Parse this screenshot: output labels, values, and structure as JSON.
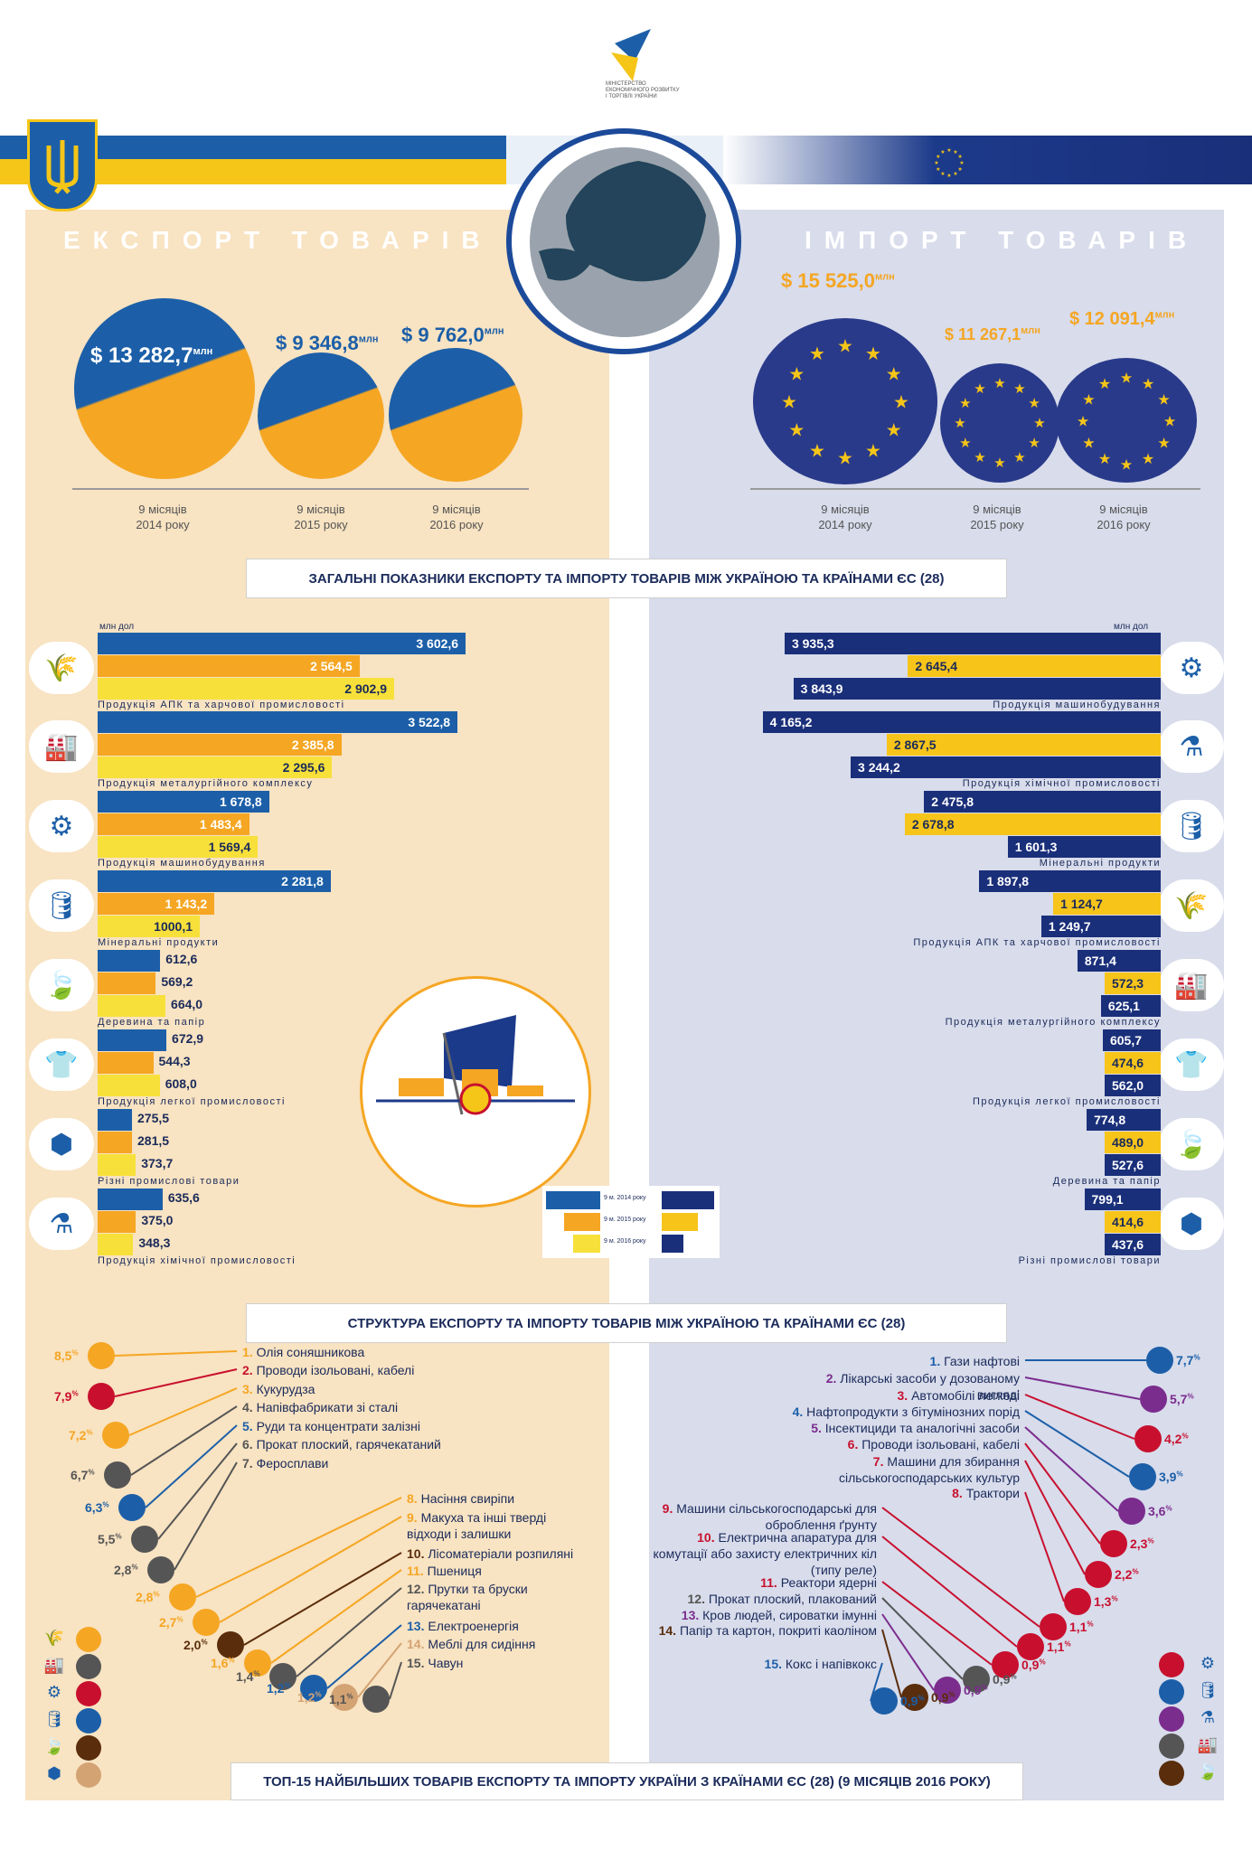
{
  "header": {
    "ministry_lines": [
      "МІНІСТЕРСТВО",
      "ЕКОНОМІЧНОГО РОЗВИТКУ",
      "І ТОРГІВЛІ УКРАЇНИ"
    ]
  },
  "export_title": "ЕКСПОРТ ТОВАРІВ",
  "import_title": "ІМПОРТ ТОВАРІВ",
  "export_totals": [
    {
      "value": "$ 13 282,7",
      "unit": "млн",
      "period1": "9 місяців",
      "period2": "2014 року"
    },
    {
      "value": "$ 9 346,8",
      "unit": "млн",
      "period1": "9 місяців",
      "period2": "2015 року"
    },
    {
      "value": "$ 9 762,0",
      "unit": "млн",
      "period1": "9 місяців",
      "period2": "2016 року"
    }
  ],
  "import_totals": [
    {
      "value": "$ 15 525,0",
      "unit": "млн",
      "period1": "9 місяців",
      "period2": "2014 року"
    },
    {
      "value": "$ 11 267,1",
      "unit": "млн",
      "period1": "9 місяців",
      "period2": "2015 року"
    },
    {
      "value": "$ 12 091,4",
      "unit": "млн",
      "period1": "9 місяців",
      "period2": "2016 року"
    }
  ],
  "section1_title": "ЗАГАЛЬНІ ПОКАЗНИКИ ЕКСПОРТУ ТА ІМПОРТУ ТОВАРІВ МІЖ УКРАЇНОЮ ТА КРАЇНАМИ ЄС (28)",
  "section2_title": "СТРУКТУРА ЕКСПОРТУ ТА ІМПОРТУ ТОВАРІВ МІЖ УКРАЇНОЮ ТА КРАЇНАМИ ЄС (28)",
  "section3_title": "ТОП-15 НАЙБІЛЬШИХ ТОВАРІВ ЕКСПОРТУ ТА ІМПОРТУ УКРАЇНИ З КРАЇНАМИ ЄС (28) (9 МІСЯЦІВ 2016 РОКУ)",
  "unit_label": "млн дол",
  "legend": [
    "9 м. 2014 року",
    "9 м. 2015 року",
    "9 м. 2016 року"
  ],
  "colors": {
    "export_2014": "#1c5fa8",
    "export_2015": "#f5a623",
    "export_2016": "#f7e03a",
    "import_dark": "#1a2f7a",
    "import_yellow": "#f7c41a"
  },
  "chart_data": [
    {
      "type": "bar",
      "orientation": "horizontal",
      "title": "Експорт",
      "ylabel": "млн дол",
      "categories": [
        "Продукція АПК та харчової промисловості",
        "Продукція металургійного комплексу",
        "Продукція машинобудування",
        "Мінеральні продукти",
        "Деревина та папір",
        "Продукція легкої промисловості",
        "Різні промислові товари",
        "Продукція хімічної промисловості"
      ],
      "icons": [
        "wheat-cow-icon",
        "factory-icon",
        "gear-icon",
        "oil-rig-icon",
        "leaf-icon",
        "shirt-icon",
        "nut-icon",
        "flask-icon"
      ],
      "series": [
        {
          "name": "9 м. 2014 року",
          "values": [
            3602.6,
            3522.8,
            1678.8,
            2281.8,
            612.6,
            672.9,
            275.5,
            635.6
          ],
          "labels": [
            "3 602,6",
            "3 522,8",
            "1 678,8",
            "2 281,8",
            "612,6",
            "672,9",
            "275,5",
            "635,6"
          ]
        },
        {
          "name": "9 м. 2015 року",
          "values": [
            2564.5,
            2385.8,
            1483.4,
            1143.2,
            569.2,
            544.3,
            281.5,
            375.0
          ],
          "labels": [
            "2 564,5",
            "2 385,8",
            "1 483,4",
            "1 143,2",
            "569,2",
            "544,3",
            "281,5",
            "375,0"
          ]
        },
        {
          "name": "9 м. 2016 року",
          "values": [
            2902.9,
            2295.6,
            1569.4,
            1000.1,
            664.0,
            608.0,
            373.7,
            348.3
          ],
          "labels": [
            "2 902,9",
            "2 295,6",
            "1 569,4",
            "1000,1",
            "664,0",
            "608,0",
            "373,7",
            "348,3"
          ]
        }
      ]
    },
    {
      "type": "bar",
      "orientation": "horizontal",
      "title": "Імпорт",
      "ylabel": "млн дол",
      "categories": [
        "Продукція машинобудування",
        "Продукція хімічної промисловості",
        "Мінеральні продукти",
        "Продукція АПК та  харчової промисловості",
        "Продукція металургійного комплексу",
        "Продукція легкої промисловості",
        "Деревина та папір",
        "Різні промислові товари"
      ],
      "icons": [
        "gear-icon",
        "flask-icon",
        "oil-rig-icon",
        "wheat-cow-icon",
        "factory-icon",
        "shirt-icon",
        "leaf-icon",
        "nut-icon"
      ],
      "series": [
        {
          "name": "9 м. 2014 року",
          "values": [
            3935.3,
            4165.2,
            2475.8,
            1897.8,
            871.4,
            605.7,
            774.8,
            799.1
          ],
          "labels": [
            "3 935,3",
            "4 165,2",
            "2 475,8",
            "1 897,8",
            "871,4",
            "605,7",
            "774,8",
            "799,1"
          ]
        },
        {
          "name": "9 м. 2015 року",
          "values": [
            2645.4,
            2867.5,
            2678.8,
            1124.7,
            572.3,
            474.6,
            489.0,
            414.6
          ],
          "labels": [
            "2 645,4",
            "2 867,5",
            "2 678,8",
            "1 124,7",
            "572,3",
            "474,6",
            "489,0",
            "414,6"
          ]
        },
        {
          "name": "9 м. 2016 року",
          "values": [
            3843.9,
            3244.2,
            1601.3,
            1249.7,
            625.1,
            562.0,
            527.6,
            437.6
          ],
          "labels": [
            "3 843,9",
            "3 244,2",
            "1 601,3",
            "1 249,7",
            "625,1",
            "562,0",
            "527,6",
            "437,6"
          ]
        }
      ]
    }
  ],
  "top_export": [
    {
      "n": "1.",
      "name": "Олія соняшникова",
      "pct": "8,5",
      "color": "#f5a623"
    },
    {
      "n": "2.",
      "name": "Проводи ізольовані, кабелі",
      "pct": "7,9",
      "color": "#c8102e"
    },
    {
      "n": "3.",
      "name": "Кукурудза",
      "pct": "7,2",
      "color": "#f5a623"
    },
    {
      "n": "4.",
      "name": "Напівфабрикати зі сталі",
      "pct": "6,7",
      "color": "#555555"
    },
    {
      "n": "5.",
      "name": "Руди та концентрати залізні",
      "pct": "6,3",
      "color": "#1c5fa8"
    },
    {
      "n": "6.",
      "name": "Прокат плоский, гарячекатаний",
      "pct": "5,5",
      "color": "#555555"
    },
    {
      "n": "7.",
      "name": "Феросплави",
      "pct": "2,8",
      "color": "#555555"
    },
    {
      "n": "8.",
      "name": "Насіння свиріпи",
      "pct": "2,8",
      "color": "#f5a623"
    },
    {
      "n": "9.",
      "name": "Макуха та інші тверді відходи і залишки",
      "pct": "2,7",
      "color": "#f5a623"
    },
    {
      "n": "10.",
      "name": "Лісоматеріали розпиляні",
      "pct": "2,0",
      "color": "#5a2d0c"
    },
    {
      "n": "11.",
      "name": "Пшениця",
      "pct": "1,6",
      "color": "#f5a623"
    },
    {
      "n": "12.",
      "name": "Прутки та бруски гарячекатані",
      "pct": "1,4",
      "color": "#555555"
    },
    {
      "n": "13.",
      "name": "Електроенергія",
      "pct": "1,2",
      "color": "#1c5fa8"
    },
    {
      "n": "14.",
      "name": "Меблі для сидіння",
      "pct": "1,2",
      "color": "#d4a373"
    },
    {
      "n": "15.",
      "name": "Чавун",
      "pct": "1,1",
      "color": "#555555"
    }
  ],
  "top_import": [
    {
      "n": "1.",
      "name": "Гази нафтові",
      "pct": "7,7",
      "color": "#1c5fa8"
    },
    {
      "n": "2.",
      "name": "Лікарські засоби у дозованому вигляді",
      "pct": "5,7",
      "color": "#7b2d8e"
    },
    {
      "n": "3.",
      "name": "Автомобілі легкові",
      "pct": "4,2",
      "color": "#c8102e"
    },
    {
      "n": "4.",
      "name": "Нафтопродукти з бітумінозних порід",
      "pct": "3,9",
      "color": "#1c5fa8"
    },
    {
      "n": "5.",
      "name": "Інсектициди та аналогічні засоби",
      "pct": "3,6",
      "color": "#7b2d8e"
    },
    {
      "n": "6.",
      "name": "Проводи ізольовані, кабелі",
      "pct": "2,3",
      "color": "#c8102e"
    },
    {
      "n": "7.",
      "name": "Машини для збирання сільськогосподарських культур",
      "pct": "2,2",
      "color": "#c8102e"
    },
    {
      "n": "8.",
      "name": "Трактори",
      "pct": "1,3",
      "color": "#c8102e"
    },
    {
      "n": "9.",
      "name": "Машини сільськогосподарські для оброблення ґрунту",
      "pct": "1,1",
      "color": "#c8102e"
    },
    {
      "n": "10.",
      "name": "Електрична апаратура для комутації або захисту електричних кіл (типу реле)",
      "pct": "1,1",
      "color": "#c8102e"
    },
    {
      "n": "11.",
      "name": "Реактори ядерні",
      "pct": "0,9",
      "color": "#c8102e"
    },
    {
      "n": "12.",
      "name": "Прокат плоский, плакований",
      "pct": "0,9",
      "color": "#555555"
    },
    {
      "n": "13.",
      "name": "Кров людей, сироватки імунні",
      "pct": "0,9",
      "color": "#7b2d8e"
    },
    {
      "n": "14.",
      "name": "Папір та картон, покриті каоліном",
      "pct": "0,9",
      "color": "#5a2d0c"
    },
    {
      "n": "15.",
      "name": "Кокс і напівкокс",
      "pct": "0,9",
      "color": "#1c5fa8"
    }
  ]
}
